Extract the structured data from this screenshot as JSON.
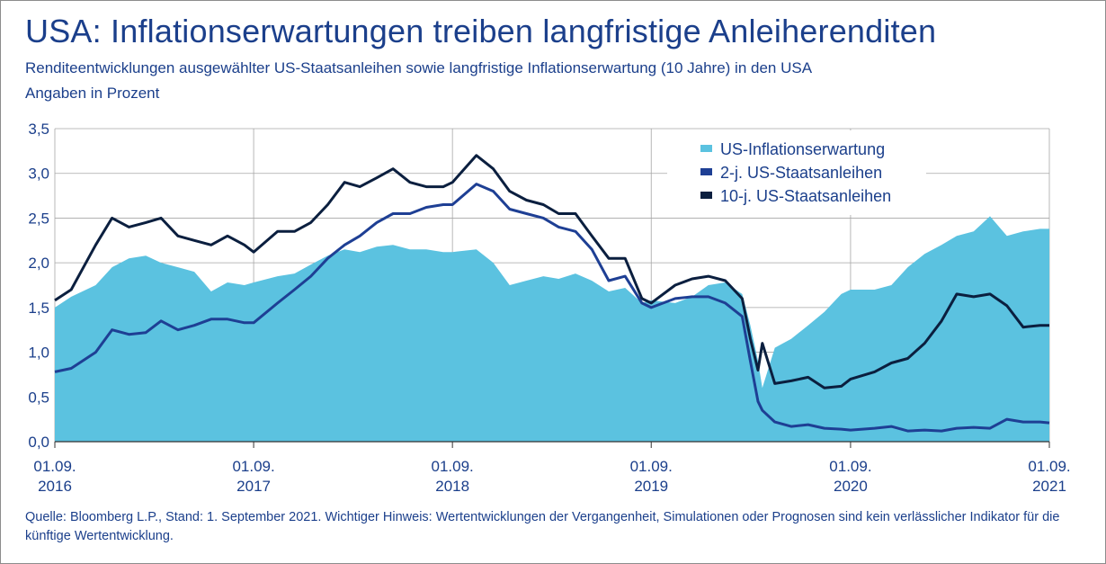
{
  "header": {
    "title": "USA: Inflationserwartungen treiben langfristige Anleiherenditen",
    "subtitle": "Renditeentwicklungen ausgewählter US-Staatsanleihen sowie langfristige Inflationserwartung (10 Jahre) in den USA",
    "unit": "Angaben in Prozent"
  },
  "footer": {
    "source": "Quelle: Bloomberg L.P., Stand: 1. September 2021. Wichtiger Hinweis: Wertentwicklungen der Vergangenheit, Simulationen oder Prognosen sind kein verlässlicher Indikator für die künftige Wertentwicklung."
  },
  "colors": {
    "inflation": "#5bc2e0",
    "two_year": "#1e3f94",
    "ten_year": "#0b1f3f",
    "grid": "#a6a6a6",
    "text": "#1b3f8b"
  },
  "chart_data": {
    "type": "line",
    "x_type": "date",
    "xlim": [
      "2016-09-01",
      "2021-09-01"
    ],
    "ylim": [
      0,
      3.5
    ],
    "grid": true,
    "legend_position": "top-right",
    "yticks": [
      "0,0",
      "0,5",
      "1,0",
      "1,5",
      "2,0",
      "2,5",
      "3,0",
      "3,5"
    ],
    "ytick_values": [
      0,
      0.5,
      1,
      1.5,
      2,
      2.5,
      3,
      3.5
    ],
    "xticks": [
      {
        "date": "2016-09-01",
        "day": "01.09.",
        "year": "2016"
      },
      {
        "date": "2017-09-01",
        "day": "01.09.",
        "year": "2017"
      },
      {
        "date": "2018-09-01",
        "day": "01.09.",
        "year": "2018"
      },
      {
        "date": "2019-09-01",
        "day": "01.09.",
        "year": "2019"
      },
      {
        "date": "2020-09-01",
        "day": "01.09.",
        "year": "2020"
      },
      {
        "date": "2021-09-01",
        "day": "01.09.",
        "year": "2021"
      }
    ],
    "series": [
      {
        "name": "US-Inflationserwartung",
        "style": "area",
        "points": [
          [
            "2016-09-01",
            1.5
          ],
          [
            "2016-10-01",
            1.62
          ],
          [
            "2016-11-15",
            1.75
          ],
          [
            "2016-12-15",
            1.95
          ],
          [
            "2017-01-15",
            2.05
          ],
          [
            "2017-02-15",
            2.08
          ],
          [
            "2017-03-15",
            2.0
          ],
          [
            "2017-04-15",
            1.95
          ],
          [
            "2017-05-15",
            1.9
          ],
          [
            "2017-06-15",
            1.68
          ],
          [
            "2017-07-15",
            1.78
          ],
          [
            "2017-08-15",
            1.75
          ],
          [
            "2017-09-01",
            1.78
          ],
          [
            "2017-10-15",
            1.85
          ],
          [
            "2017-11-15",
            1.88
          ],
          [
            "2017-12-15",
            1.98
          ],
          [
            "2018-01-15",
            2.08
          ],
          [
            "2018-02-15",
            2.15
          ],
          [
            "2018-03-15",
            2.12
          ],
          [
            "2018-04-15",
            2.18
          ],
          [
            "2018-05-15",
            2.2
          ],
          [
            "2018-06-15",
            2.15
          ],
          [
            "2018-07-15",
            2.15
          ],
          [
            "2018-08-15",
            2.12
          ],
          [
            "2018-09-01",
            2.12
          ],
          [
            "2018-10-15",
            2.15
          ],
          [
            "2018-11-15",
            2.0
          ],
          [
            "2018-12-15",
            1.75
          ],
          [
            "2019-01-15",
            1.8
          ],
          [
            "2019-02-15",
            1.85
          ],
          [
            "2019-03-15",
            1.82
          ],
          [
            "2019-04-15",
            1.88
          ],
          [
            "2019-05-15",
            1.8
          ],
          [
            "2019-06-15",
            1.68
          ],
          [
            "2019-07-15",
            1.72
          ],
          [
            "2019-08-15",
            1.55
          ],
          [
            "2019-09-01",
            1.58
          ],
          [
            "2019-10-15",
            1.55
          ],
          [
            "2019-11-15",
            1.62
          ],
          [
            "2019-12-15",
            1.75
          ],
          [
            "2020-01-15",
            1.78
          ],
          [
            "2020-02-15",
            1.65
          ],
          [
            "2020-03-01",
            1.3
          ],
          [
            "2020-03-15",
            0.9
          ],
          [
            "2020-03-23",
            0.6
          ],
          [
            "2020-04-15",
            1.05
          ],
          [
            "2020-05-15",
            1.15
          ],
          [
            "2020-06-15",
            1.3
          ],
          [
            "2020-07-15",
            1.45
          ],
          [
            "2020-08-15",
            1.65
          ],
          [
            "2020-09-01",
            1.7
          ],
          [
            "2020-10-15",
            1.7
          ],
          [
            "2020-11-15",
            1.75
          ],
          [
            "2020-12-15",
            1.95
          ],
          [
            "2021-01-15",
            2.1
          ],
          [
            "2021-02-15",
            2.2
          ],
          [
            "2021-03-15",
            2.3
          ],
          [
            "2021-04-15",
            2.35
          ],
          [
            "2021-05-15",
            2.52
          ],
          [
            "2021-06-15",
            2.3
          ],
          [
            "2021-07-15",
            2.35
          ],
          [
            "2021-08-15",
            2.38
          ],
          [
            "2021-09-01",
            2.38
          ]
        ]
      },
      {
        "name": "2-j. US-Staatsanleihen",
        "style": "line",
        "points": [
          [
            "2016-09-01",
            0.78
          ],
          [
            "2016-10-01",
            0.82
          ],
          [
            "2016-11-15",
            1.0
          ],
          [
            "2016-12-15",
            1.25
          ],
          [
            "2017-01-15",
            1.2
          ],
          [
            "2017-02-15",
            1.22
          ],
          [
            "2017-03-15",
            1.35
          ],
          [
            "2017-04-15",
            1.25
          ],
          [
            "2017-05-15",
            1.3
          ],
          [
            "2017-06-15",
            1.37
          ],
          [
            "2017-07-15",
            1.37
          ],
          [
            "2017-08-15",
            1.33
          ],
          [
            "2017-09-01",
            1.33
          ],
          [
            "2017-10-15",
            1.55
          ],
          [
            "2017-11-15",
            1.7
          ],
          [
            "2017-12-15",
            1.85
          ],
          [
            "2018-01-15",
            2.05
          ],
          [
            "2018-02-15",
            2.2
          ],
          [
            "2018-03-15",
            2.3
          ],
          [
            "2018-04-15",
            2.45
          ],
          [
            "2018-05-15",
            2.55
          ],
          [
            "2018-06-15",
            2.55
          ],
          [
            "2018-07-15",
            2.62
          ],
          [
            "2018-08-15",
            2.65
          ],
          [
            "2018-09-01",
            2.65
          ],
          [
            "2018-10-15",
            2.88
          ],
          [
            "2018-11-15",
            2.8
          ],
          [
            "2018-12-15",
            2.6
          ],
          [
            "2019-01-15",
            2.55
          ],
          [
            "2019-02-15",
            2.5
          ],
          [
            "2019-03-15",
            2.4
          ],
          [
            "2019-04-15",
            2.35
          ],
          [
            "2019-05-15",
            2.15
          ],
          [
            "2019-06-15",
            1.8
          ],
          [
            "2019-07-15",
            1.85
          ],
          [
            "2019-08-15",
            1.55
          ],
          [
            "2019-09-01",
            1.5
          ],
          [
            "2019-10-15",
            1.6
          ],
          [
            "2019-11-15",
            1.62
          ],
          [
            "2019-12-15",
            1.62
          ],
          [
            "2020-01-15",
            1.55
          ],
          [
            "2020-02-15",
            1.4
          ],
          [
            "2020-03-01",
            0.9
          ],
          [
            "2020-03-15",
            0.45
          ],
          [
            "2020-03-23",
            0.35
          ],
          [
            "2020-04-15",
            0.22
          ],
          [
            "2020-05-15",
            0.17
          ],
          [
            "2020-06-15",
            0.19
          ],
          [
            "2020-07-15",
            0.15
          ],
          [
            "2020-08-15",
            0.14
          ],
          [
            "2020-09-01",
            0.13
          ],
          [
            "2020-10-15",
            0.15
          ],
          [
            "2020-11-15",
            0.17
          ],
          [
            "2020-12-15",
            0.12
          ],
          [
            "2021-01-15",
            0.13
          ],
          [
            "2021-02-15",
            0.12
          ],
          [
            "2021-03-15",
            0.15
          ],
          [
            "2021-04-15",
            0.16
          ],
          [
            "2021-05-15",
            0.15
          ],
          [
            "2021-06-15",
            0.25
          ],
          [
            "2021-07-15",
            0.22
          ],
          [
            "2021-08-15",
            0.22
          ],
          [
            "2021-09-01",
            0.21
          ]
        ]
      },
      {
        "name": "10-j. US-Staatsanleihen",
        "style": "line",
        "points": [
          [
            "2016-09-01",
            1.58
          ],
          [
            "2016-10-01",
            1.7
          ],
          [
            "2016-11-15",
            2.2
          ],
          [
            "2016-12-15",
            2.5
          ],
          [
            "2017-01-15",
            2.4
          ],
          [
            "2017-02-15",
            2.45
          ],
          [
            "2017-03-15",
            2.5
          ],
          [
            "2017-04-15",
            2.3
          ],
          [
            "2017-05-15",
            2.25
          ],
          [
            "2017-06-15",
            2.2
          ],
          [
            "2017-07-15",
            2.3
          ],
          [
            "2017-08-15",
            2.2
          ],
          [
            "2017-09-01",
            2.12
          ],
          [
            "2017-10-15",
            2.35
          ],
          [
            "2017-11-15",
            2.35
          ],
          [
            "2017-12-15",
            2.45
          ],
          [
            "2018-01-15",
            2.65
          ],
          [
            "2018-02-15",
            2.9
          ],
          [
            "2018-03-15",
            2.85
          ],
          [
            "2018-04-15",
            2.95
          ],
          [
            "2018-05-15",
            3.05
          ],
          [
            "2018-06-15",
            2.9
          ],
          [
            "2018-07-15",
            2.85
          ],
          [
            "2018-08-15",
            2.85
          ],
          [
            "2018-09-01",
            2.9
          ],
          [
            "2018-10-15",
            3.2
          ],
          [
            "2018-11-15",
            3.05
          ],
          [
            "2018-12-15",
            2.8
          ],
          [
            "2019-01-15",
            2.7
          ],
          [
            "2019-02-15",
            2.65
          ],
          [
            "2019-03-15",
            2.55
          ],
          [
            "2019-04-15",
            2.55
          ],
          [
            "2019-05-15",
            2.3
          ],
          [
            "2019-06-15",
            2.05
          ],
          [
            "2019-07-15",
            2.05
          ],
          [
            "2019-08-15",
            1.6
          ],
          [
            "2019-09-01",
            1.55
          ],
          [
            "2019-10-15",
            1.75
          ],
          [
            "2019-11-15",
            1.82
          ],
          [
            "2019-12-15",
            1.85
          ],
          [
            "2020-01-15",
            1.8
          ],
          [
            "2020-02-15",
            1.6
          ],
          [
            "2020-03-01",
            1.15
          ],
          [
            "2020-03-15",
            0.8
          ],
          [
            "2020-03-23",
            1.1
          ],
          [
            "2020-04-15",
            0.65
          ],
          [
            "2020-05-15",
            0.68
          ],
          [
            "2020-06-15",
            0.72
          ],
          [
            "2020-07-15",
            0.6
          ],
          [
            "2020-08-15",
            0.62
          ],
          [
            "2020-09-01",
            0.7
          ],
          [
            "2020-10-15",
            0.78
          ],
          [
            "2020-11-15",
            0.88
          ],
          [
            "2020-12-15",
            0.93
          ],
          [
            "2021-01-15",
            1.1
          ],
          [
            "2021-02-15",
            1.35
          ],
          [
            "2021-03-15",
            1.65
          ],
          [
            "2021-04-15",
            1.62
          ],
          [
            "2021-05-15",
            1.65
          ],
          [
            "2021-06-15",
            1.52
          ],
          [
            "2021-07-15",
            1.28
          ],
          [
            "2021-08-15",
            1.3
          ],
          [
            "2021-09-01",
            1.3
          ]
        ]
      }
    ]
  }
}
